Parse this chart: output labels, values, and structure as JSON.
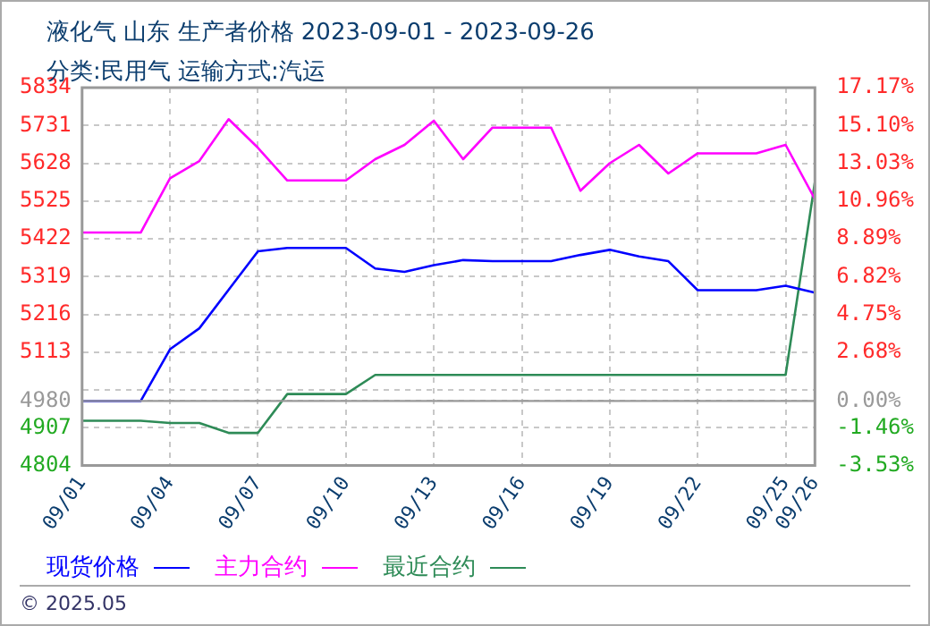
{
  "chart_data": {
    "type": "line",
    "title": "液化气 山东 生产者价格 2023-09-01 - 2023-09-26",
    "subtitle": "分类:民用气 运输方式:汽运",
    "x": [
      "2023-09-01",
      "2023-09-02",
      "2023-09-03",
      "2023-09-04",
      "2023-09-05",
      "2023-09-06",
      "2023-09-07",
      "2023-09-08",
      "2023-09-09",
      "2023-09-10",
      "2023-09-11",
      "2023-09-12",
      "2023-09-13",
      "2023-09-14",
      "2023-09-15",
      "2023-09-16",
      "2023-09-17",
      "2023-09-18",
      "2023-09-19",
      "2023-09-20",
      "2023-09-21",
      "2023-09-22",
      "2023-09-23",
      "2023-09-24",
      "2023-09-25",
      "2023-09-26"
    ],
    "series": [
      {
        "name": "现货价格",
        "color": "#0000ff",
        "values": [
          4980,
          4980,
          4980,
          5121,
          5178,
          5283,
          5388,
          5397,
          5397,
          5397,
          5341,
          5332,
          5350,
          5364,
          5361,
          5361,
          5361,
          5378,
          5392,
          5374,
          5361,
          5282,
          5282,
          5282,
          5294,
          5275
        ]
      },
      {
        "name": "主力合约",
        "color": "#ff00ff",
        "values": [
          5439,
          5439,
          5439,
          5587,
          5634,
          5748,
          5670,
          5581,
          5581,
          5581,
          5639,
          5678,
          5744,
          5639,
          5725,
          5725,
          5725,
          5553,
          5628,
          5678,
          5600,
          5655,
          5655,
          5655,
          5678,
          5530
        ]
      },
      {
        "name": "最近合约",
        "color": "#2e8b57",
        "values": [
          4926,
          4926,
          4926,
          4920,
          4920,
          4893,
          4893,
          4999,
          4999,
          4999,
          5051,
          5051,
          5051,
          5051,
          5051,
          5051,
          5051,
          5051,
          5051,
          5051,
          5051,
          5051,
          5051,
          5051,
          5051,
          5577
        ]
      }
    ],
    "xlim": [
      "2023-09-01",
      "2023-09-26"
    ],
    "xticks": [
      {
        "value": "2023-09-01",
        "label": "09/01"
      },
      {
        "value": "2023-09-04",
        "label": "09/04"
      },
      {
        "value": "2023-09-07",
        "label": "09/07"
      },
      {
        "value": "2023-09-10",
        "label": "09/10"
      },
      {
        "value": "2023-09-13",
        "label": "09/13"
      },
      {
        "value": "2023-09-16",
        "label": "09/16"
      },
      {
        "value": "2023-09-19",
        "label": "09/19"
      },
      {
        "value": "2023-09-22",
        "label": "09/22"
      },
      {
        "value": "2023-09-25",
        "label": "09/25"
      },
      {
        "value": "2023-09-26",
        "label": "09/26"
      }
    ],
    "ylim": [
      4804,
      5834
    ],
    "yticks": [
      5834,
      5731,
      5628,
      5525,
      5422,
      5319,
      5216,
      5113,
      {
        "value": 5010,
        "label": null
      },
      4980,
      4907,
      4804
    ],
    "y2lim": [
      -3.53,
      17.17
    ],
    "y2ticks": [
      {
        "value": 17.17,
        "label": "17.17%"
      },
      {
        "value": 15.1,
        "label": "15.10%"
      },
      {
        "value": 13.03,
        "label": "13.03%"
      },
      {
        "value": 10.96,
        "label": "10.96%"
      },
      {
        "value": 8.89,
        "label": "8.89%"
      },
      {
        "value": 6.82,
        "label": "6.82%"
      },
      {
        "value": 4.75,
        "label": "4.75%"
      },
      {
        "value": 2.68,
        "label": "2.68%"
      },
      {
        "value": 0,
        "label": "0.00%"
      },
      {
        "value": -1.46,
        "label": "-1.46%"
      },
      {
        "value": -3.53,
        "label": "-3.53%"
      }
    ],
    "ref_lines": [
      {
        "axis": "y",
        "value": 4980,
        "color": "#999999"
      }
    ],
    "grid": true,
    "line_style": "solid",
    "marker": "none",
    "legend": "bottom",
    "annotations": [
      "© 2025.05"
    ]
  }
}
